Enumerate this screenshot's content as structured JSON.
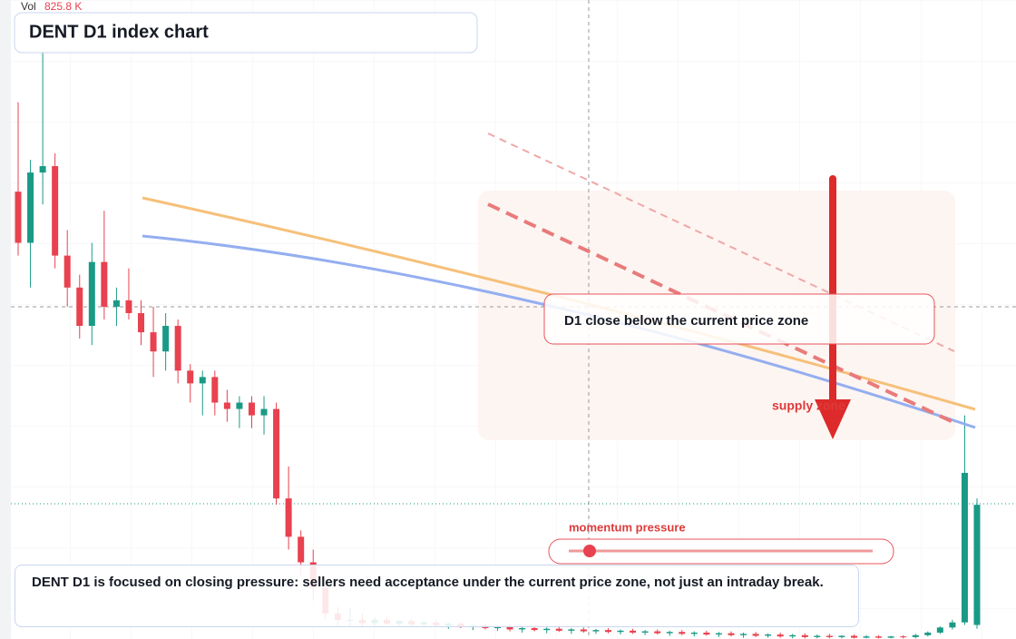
{
  "chart_data": {
    "type": "candlestick",
    "title": "DENT D1 index chart",
    "volume_label": "Vol",
    "volume_value": "825.8 K",
    "callout": "D1 close below the current price zone",
    "zone_label": "supply zone",
    "slider_label": "momentum pressure",
    "description": "DENT D1 is focused on closing pressure: sellers need acceptance under the current price zone, not just an intraday break.",
    "up_color": "#1a9a86",
    "down_color": "#e8414f",
    "ylim": [
      0,
      100
    ],
    "ohlc": [
      [
        70,
        84,
        60,
        62
      ],
      [
        62,
        75,
        55,
        73
      ],
      [
        73,
        92,
        68,
        74
      ],
      [
        74,
        76,
        58,
        60
      ],
      [
        60,
        64,
        52,
        55
      ],
      [
        55,
        57,
        47,
        49
      ],
      [
        49,
        62,
        46,
        59
      ],
      [
        59,
        67,
        50,
        52
      ],
      [
        52,
        55,
        49,
        53
      ],
      [
        53,
        58,
        50,
        51
      ],
      [
        51,
        53,
        46,
        48
      ],
      [
        48,
        52,
        41,
        45
      ],
      [
        45,
        51,
        42,
        49
      ],
      [
        49,
        50,
        40,
        42
      ],
      [
        42,
        43,
        37,
        40
      ],
      [
        40,
        42,
        35,
        41
      ],
      [
        41,
        42,
        35,
        37
      ],
      [
        37,
        39,
        34,
        36
      ],
      [
        36,
        38,
        33,
        37
      ],
      [
        37,
        38,
        33,
        35
      ],
      [
        35,
        38,
        32,
        36
      ],
      [
        36,
        37,
        21,
        22
      ],
      [
        22,
        27,
        14,
        16
      ],
      [
        16,
        17,
        10,
        12
      ],
      [
        12,
        14,
        6,
        8
      ],
      [
        8,
        9,
        3,
        4
      ],
      [
        4,
        5,
        2,
        3
      ],
      [
        3,
        5,
        2,
        3
      ],
      [
        3,
        4,
        2,
        2.5
      ],
      [
        2.5,
        3.5,
        2,
        3
      ],
      [
        3,
        3.5,
        2.2,
        2.4
      ],
      [
        2.4,
        3,
        2,
        2.8
      ],
      [
        2.8,
        3.2,
        2.1,
        2.3
      ],
      [
        2.3,
        2.9,
        1.9,
        2.6
      ],
      [
        2.6,
        3,
        2,
        2.1
      ],
      [
        2.1,
        2.6,
        1.6,
        2.4
      ],
      [
        2.4,
        2.7,
        1.7,
        1.9
      ],
      [
        1.9,
        2.3,
        1.4,
        2.1
      ],
      [
        2.1,
        2.4,
        1.5,
        1.7
      ],
      [
        1.7,
        2.2,
        1.3,
        2
      ],
      [
        2,
        2.3,
        1.2,
        1.5
      ],
      [
        1.5,
        1.9,
        1,
        1.7
      ],
      [
        1.7,
        2,
        1.2,
        1.4
      ],
      [
        1.4,
        1.8,
        0.9,
        1.6
      ],
      [
        1.6,
        1.9,
        1.1,
        1.3
      ],
      [
        1.3,
        1.7,
        0.8,
        1.5
      ],
      [
        1.5,
        1.8,
        1,
        1.2
      ],
      [
        1.2,
        1.6,
        0.8,
        1.4
      ],
      [
        1.4,
        1.7,
        0.9,
        1.1
      ],
      [
        1.1,
        1.5,
        0.7,
        1.3
      ],
      [
        1.3,
        1.6,
        0.8,
        1
      ],
      [
        1,
        1.4,
        0.6,
        1.2
      ],
      [
        1.2,
        1.5,
        0.7,
        0.9
      ],
      [
        0.9,
        1.3,
        0.5,
        1.1
      ],
      [
        1.1,
        1.4,
        0.6,
        0.8
      ],
      [
        0.8,
        1.2,
        0.4,
        1
      ],
      [
        1,
        1.3,
        0.5,
        0.7
      ],
      [
        0.7,
        1.1,
        0.3,
        0.9
      ],
      [
        0.9,
        1.2,
        0.4,
        0.6
      ],
      [
        0.6,
        1,
        0.2,
        0.8
      ],
      [
        0.8,
        1.1,
        0.3,
        0.5
      ],
      [
        0.5,
        0.9,
        0.2,
        0.7
      ],
      [
        0.7,
        1,
        0.2,
        0.4
      ],
      [
        0.4,
        0.8,
        0.1,
        0.6
      ],
      [
        0.6,
        0.9,
        0.1,
        0.3
      ],
      [
        0.3,
        0.7,
        0.1,
        0.5
      ],
      [
        0.5,
        0.8,
        0.1,
        0.3
      ],
      [
        0.3,
        0.6,
        0.1,
        0.5
      ],
      [
        0.5,
        0.7,
        0.1,
        0.2
      ],
      [
        0.2,
        0.6,
        0.1,
        0.4
      ],
      [
        0.4,
        0.6,
        0.1,
        0.2
      ],
      [
        0.2,
        0.5,
        0.1,
        0.4
      ],
      [
        0.4,
        0.6,
        0.1,
        0.3
      ],
      [
        0.3,
        0.8,
        0.1,
        0.6
      ],
      [
        0.6,
        1.2,
        0.4,
        1
      ],
      [
        1,
        2,
        0.8,
        1.8
      ],
      [
        1.8,
        3,
        1.5,
        2.6
      ],
      [
        2.6,
        35,
        2.2,
        26
      ],
      [
        2.2,
        22,
        1.6,
        21
      ]
    ]
  }
}
